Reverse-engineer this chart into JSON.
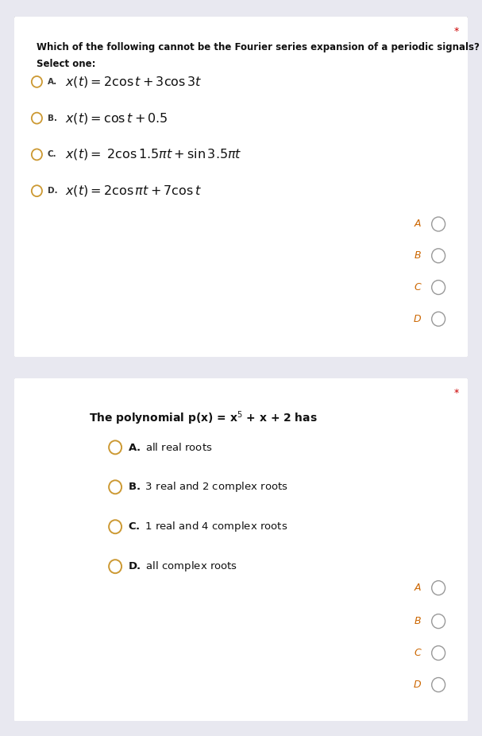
{
  "bg_color": "#e8e8f0",
  "panel_bg": "#ffffff",
  "panel_border": "#cccccc",
  "star_color": "#cc0000",
  "q1": {
    "question_line1": "Which of the following cannot be the Fourier series expansion of a periodic signals?",
    "question_line2": "Select one:",
    "options": [
      {
        "label": "A.",
        "math": "$x(t) = 2\\cos t + 3\\cos 3t$"
      },
      {
        "label": "B.",
        "math": "$x(t) = \\cos t + 0.5$"
      },
      {
        "label": "C.",
        "math": "$x(t) =\\;  2\\cos 1.5\\pi t + \\sin 3.5\\pi t$"
      },
      {
        "label": "D.",
        "math": "$x(t) = 2\\cos \\pi t + 7\\cos t$"
      }
    ],
    "answer_labels": [
      "A",
      "B",
      "C",
      "D"
    ],
    "circle_color": "#cc9933",
    "answer_label_color": "#cc6600",
    "answer_circle_color": "#999999"
  },
  "q2": {
    "question": "The polynomial p(x) = x$^5$ + x + 2 has",
    "options": [
      {
        "label": "A.",
        "text": "all real roots"
      },
      {
        "label": "B.",
        "text": "3 real and 2 complex roots"
      },
      {
        "label": "C.",
        "text": "1 real and 4 complex roots"
      },
      {
        "label": "D.",
        "text": "all complex roots"
      }
    ],
    "answer_labels": [
      "A",
      "B",
      "C",
      "D"
    ],
    "circle_color": "#cc9933",
    "answer_label_color": "#cc6600",
    "answer_circle_color": "#999999"
  }
}
